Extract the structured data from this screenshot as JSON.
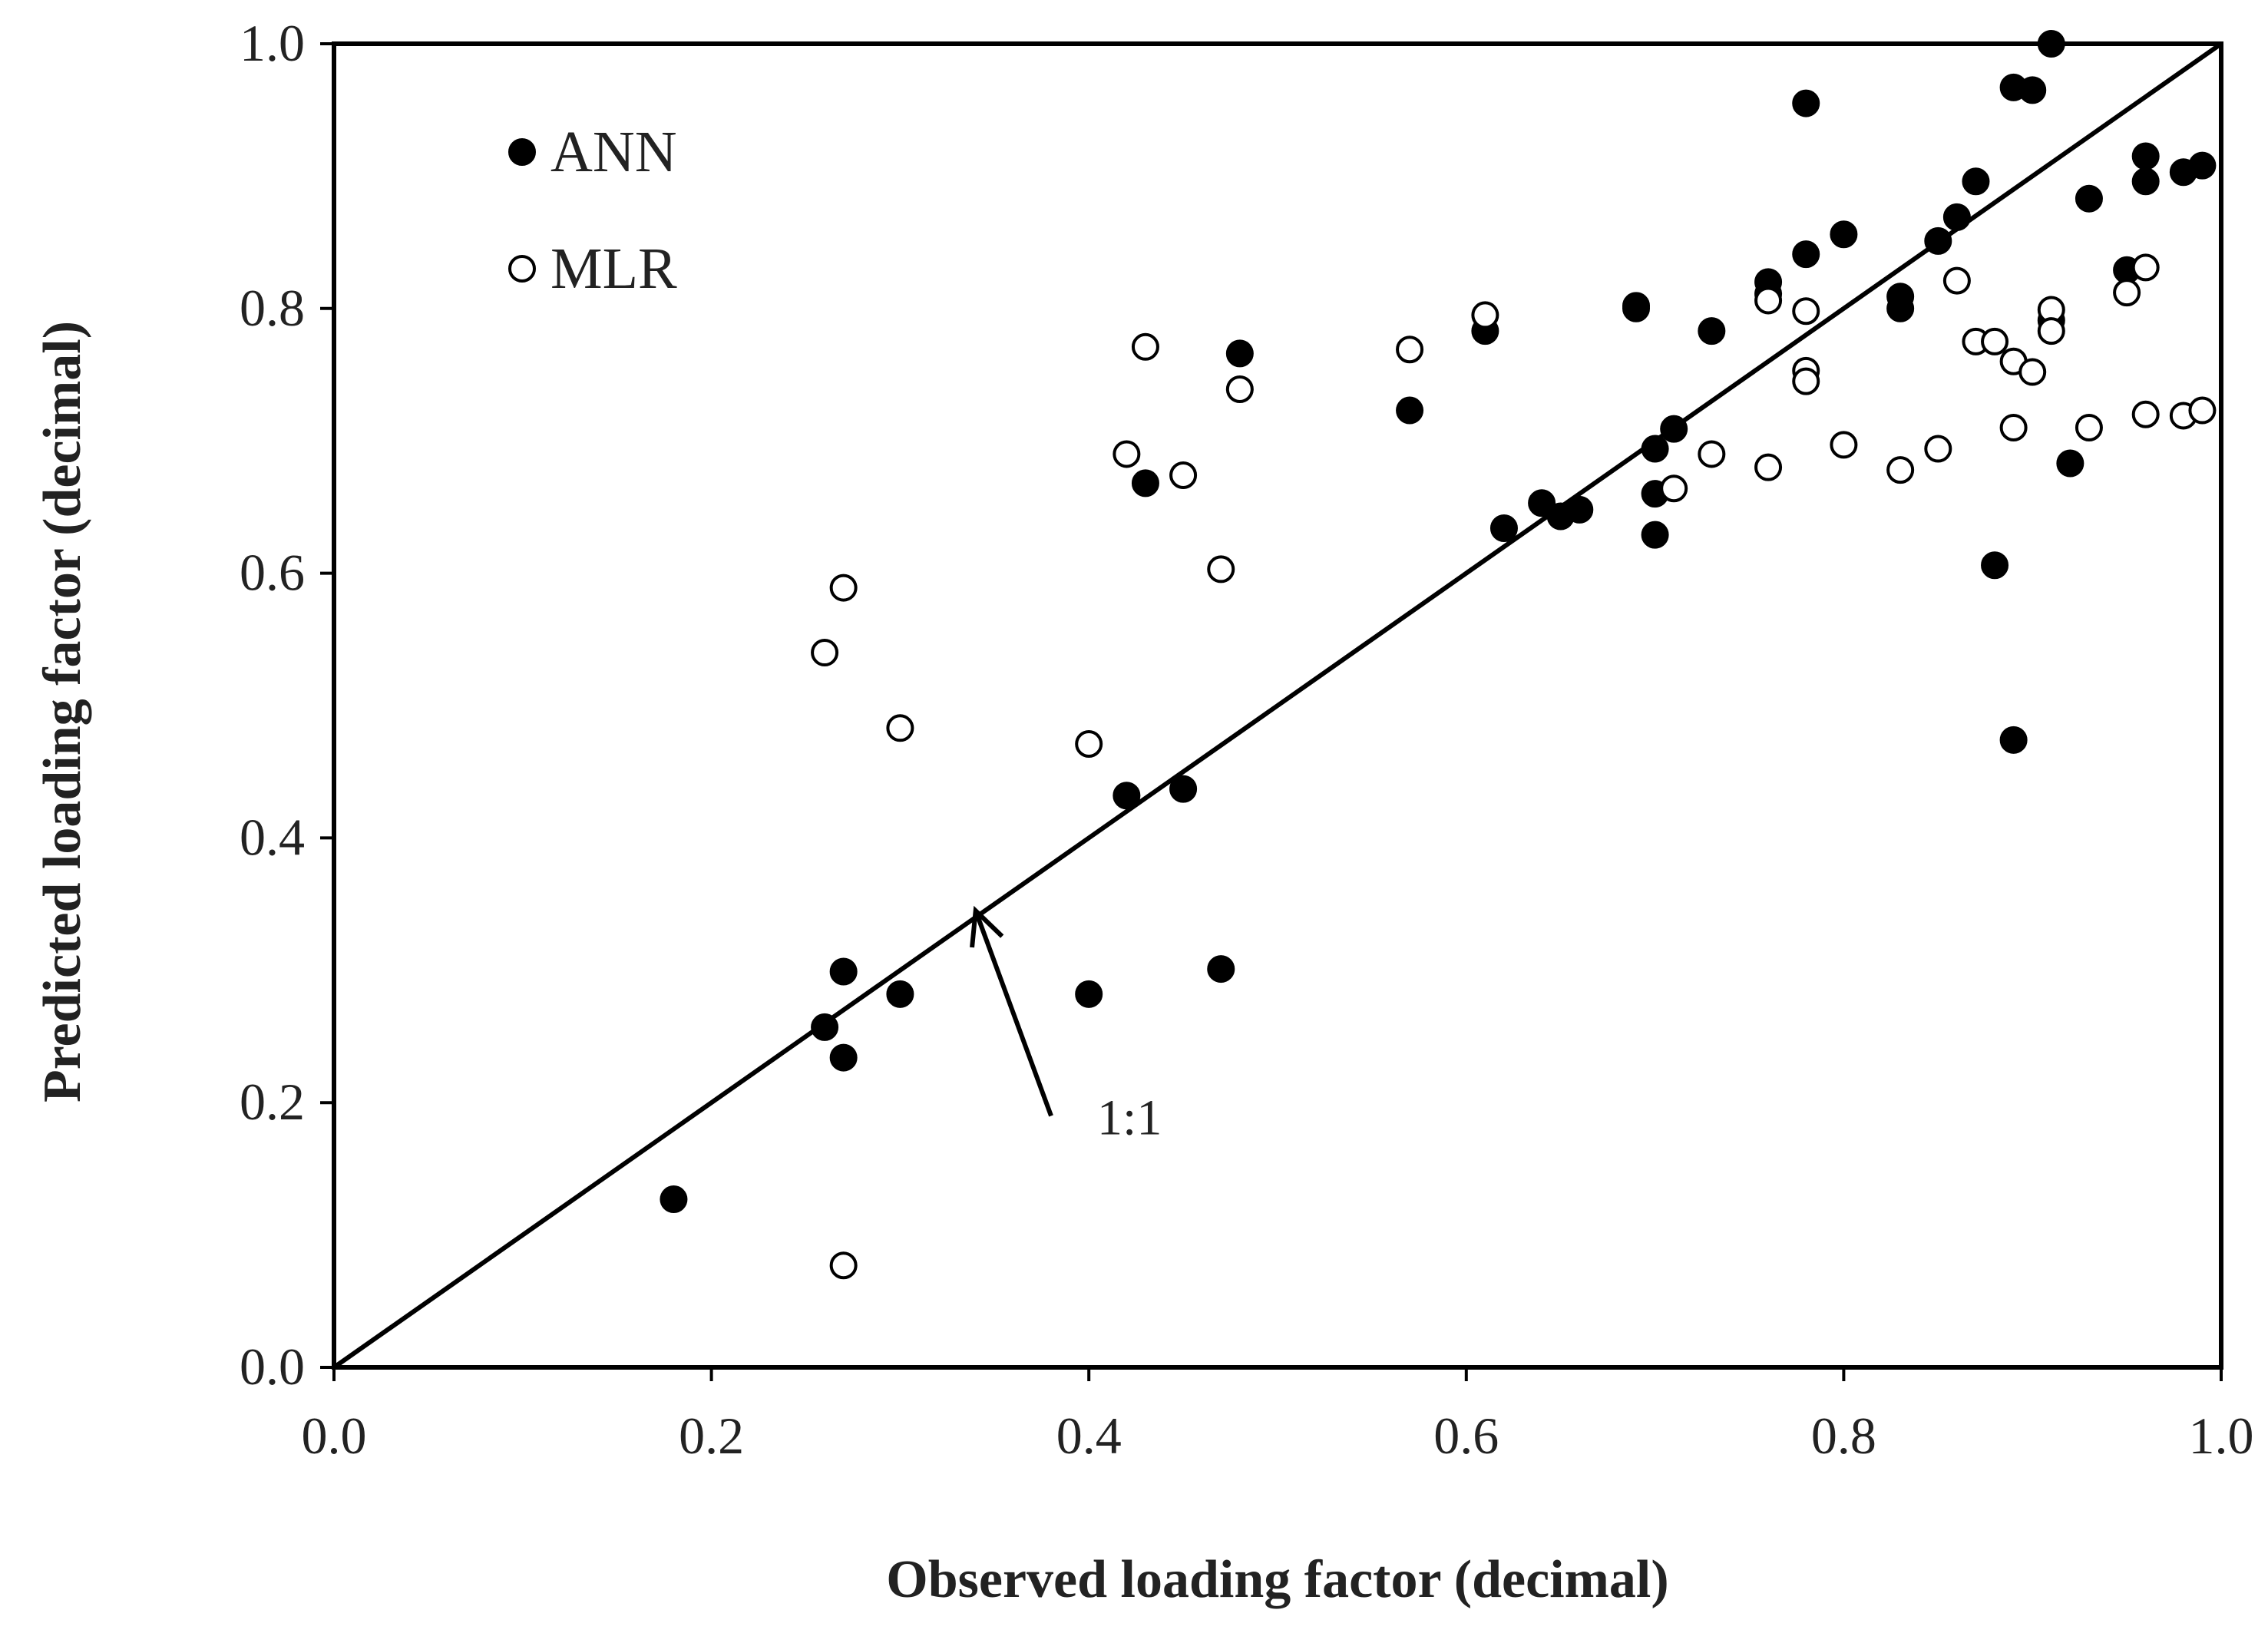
{
  "chart_data": {
    "type": "scatter",
    "xlabel": "Observed loading factor (decimal)",
    "ylabel": "Predicted loading factor (decimal)",
    "xlim": [
      0.0,
      1.0
    ],
    "ylim": [
      0.0,
      1.0
    ],
    "xticks": [
      "0.0",
      "0.2",
      "0.4",
      "0.6",
      "0.8",
      "1.0"
    ],
    "yticks": [
      "0.0",
      "0.2",
      "0.4",
      "0.6",
      "0.8",
      "1.0"
    ],
    "grid": false,
    "legend_position": "top-left",
    "reference_line": {
      "label": "1:1",
      "from": [
        0.0,
        0.0
      ],
      "to": [
        1.0,
        1.0
      ]
    },
    "annotation": {
      "text": "1:1",
      "arrow_tail": [
        0.38,
        0.19
      ],
      "arrow_head": [
        0.34,
        0.345
      ]
    },
    "series": [
      {
        "name": "ANN",
        "marker": "filled-circle",
        "color": "#000000",
        "x": [
          0.18,
          0.26,
          0.27,
          0.27,
          0.3,
          0.4,
          0.42,
          0.43,
          0.45,
          0.47,
          0.48,
          0.57,
          0.61,
          0.62,
          0.64,
          0.65,
          0.66,
          0.69,
          0.69,
          0.7,
          0.7,
          0.7,
          0.71,
          0.73,
          0.76,
          0.76,
          0.78,
          0.78,
          0.8,
          0.83,
          0.83,
          0.85,
          0.86,
          0.87,
          0.88,
          0.89,
          0.89,
          0.9,
          0.91,
          0.91,
          0.92,
          0.93,
          0.95,
          0.96,
          0.96,
          0.98,
          0.99
        ],
        "y": [
          0.127,
          0.257,
          0.299,
          0.234,
          0.282,
          0.282,
          0.432,
          0.668,
          0.437,
          0.301,
          0.766,
          0.723,
          0.783,
          0.634,
          0.653,
          0.643,
          0.648,
          0.8,
          0.802,
          0.694,
          0.66,
          0.629,
          0.709,
          0.783,
          0.82,
          0.811,
          0.841,
          0.955,
          0.856,
          0.809,
          0.8,
          0.851,
          0.869,
          0.896,
          0.606,
          0.474,
          0.967,
          0.965,
          1.0,
          0.791,
          0.683,
          0.883,
          0.829,
          0.915,
          0.896,
          0.903,
          0.908
        ]
      },
      {
        "name": "MLR",
        "marker": "open-circle",
        "color": "#000000",
        "x": [
          0.26,
          0.27,
          0.27,
          0.3,
          0.4,
          0.42,
          0.43,
          0.45,
          0.47,
          0.48,
          0.57,
          0.61,
          0.71,
          0.73,
          0.76,
          0.76,
          0.78,
          0.78,
          0.78,
          0.8,
          0.83,
          0.85,
          0.86,
          0.87,
          0.88,
          0.89,
          0.89,
          0.9,
          0.91,
          0.91,
          0.93,
          0.95,
          0.96,
          0.96,
          0.98,
          0.99
        ],
        "y": [
          0.54,
          0.589,
          0.077,
          0.483,
          0.471,
          0.69,
          0.771,
          0.674,
          0.603,
          0.739,
          0.769,
          0.795,
          0.664,
          0.69,
          0.806,
          0.68,
          0.798,
          0.753,
          0.745,
          0.697,
          0.678,
          0.694,
          0.821,
          0.775,
          0.775,
          0.76,
          0.71,
          0.752,
          0.799,
          0.783,
          0.71,
          0.812,
          0.831,
          0.72,
          0.719,
          0.723
        ]
      }
    ]
  }
}
